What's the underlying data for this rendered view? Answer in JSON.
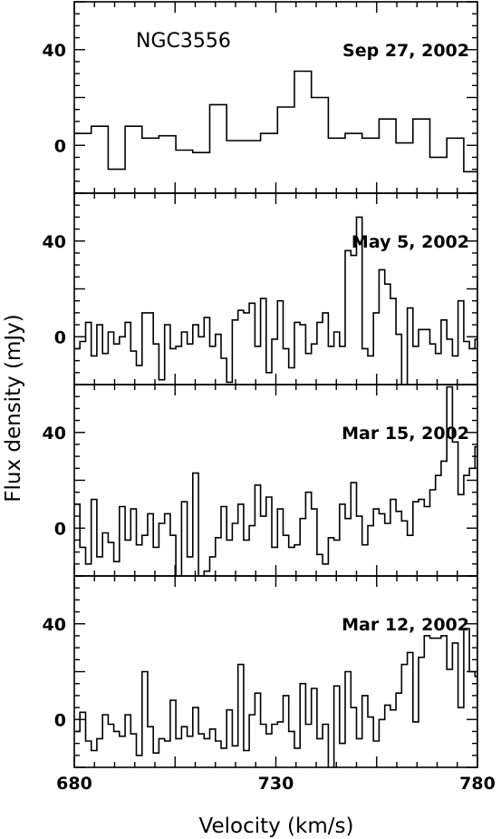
{
  "chart_data": {
    "type": "line",
    "style": "step-histogram",
    "object_name": "NGC3556",
    "xlabel": "Velocity (km/s)",
    "ylabel": "Flux density (mJy)",
    "xlim": [
      680,
      780
    ],
    "ylim": [
      -20,
      60
    ],
    "x_tick_labels": [
      "680",
      "730",
      "780"
    ],
    "x_ticks": [
      680,
      730,
      780
    ],
    "y_tick_labels": [
      "0",
      "40"
    ],
    "y_ticks": [
      0,
      40
    ],
    "grid": false,
    "panels": [
      {
        "label": "Sep 27, 2002",
        "x_start": 680,
        "x_step": 4.2,
        "values": [
          5,
          8,
          -10,
          8,
          3,
          4,
          -2,
          -3,
          17,
          2,
          2,
          5,
          16,
          31,
          20,
          3,
          5,
          3,
          11,
          1,
          11,
          -5,
          3,
          -11
        ]
      },
      {
        "label": "May 5, 2002",
        "x_start": 680,
        "x_step": 1.4,
        "values": [
          -5,
          -2,
          6,
          -8,
          5,
          -7,
          2,
          -3,
          0,
          6,
          -6,
          -12,
          10,
          10,
          -3,
          -18,
          5,
          -5,
          -4,
          2,
          -3,
          5,
          0,
          8,
          -4,
          1,
          -9,
          -19,
          7,
          11,
          10,
          14,
          -4,
          16,
          -15,
          -1,
          15,
          -5,
          -13,
          6,
          5,
          -7,
          -3,
          6,
          10,
          -4,
          2,
          -4,
          36,
          34,
          50,
          -5,
          -8,
          10,
          28,
          22,
          16,
          1,
          -27,
          12,
          -4,
          3,
          3,
          -3,
          -7,
          7,
          -1,
          -8,
          15,
          -2,
          -5,
          -1,
          -6,
          -1,
          -4,
          -2,
          5,
          -2,
          26,
          -18
        ]
      },
      {
        "label": "Mar 15, 2002",
        "x_start": 680,
        "x_step": 1.4,
        "values": [
          10,
          -8,
          -15,
          12,
          -12,
          -2,
          -6,
          -14,
          9,
          -5,
          8,
          -7,
          -3,
          6,
          -8,
          2,
          6,
          -3,
          -26,
          11,
          -12,
          23,
          -26,
          -18,
          -12,
          -4,
          9,
          -5,
          2,
          10,
          -5,
          1,
          18,
          5,
          13,
          -8,
          8,
          -3,
          -8,
          -7,
          4,
          15,
          8,
          -11,
          -15,
          -4,
          -5,
          10,
          4,
          19,
          5,
          -7,
          1,
          8,
          6,
          2,
          12,
          7,
          3,
          -3,
          11,
          12,
          9,
          16,
          22,
          28,
          59,
          36,
          14,
          22,
          25,
          34,
          19,
          15,
          11,
          14,
          11,
          1,
          -12,
          5,
          0,
          12,
          1,
          -3,
          8,
          -5,
          3,
          6,
          0,
          -9,
          4,
          -12,
          -6,
          9,
          -14,
          -6,
          5,
          -10,
          11,
          -14,
          -2,
          13,
          -22,
          -3,
          -7,
          -4,
          -6,
          3,
          4,
          -18,
          -12,
          -7,
          18,
          17,
          -11,
          -9,
          23,
          -6,
          -8,
          6,
          5
        ]
      },
      {
        "label": "Mar 12, 2002",
        "x_start": 680,
        "x_step": 1.4,
        "values": [
          -5,
          3,
          -9,
          -13,
          -8,
          2,
          -2,
          -5,
          -7,
          2,
          -6,
          -15,
          20,
          -3,
          -14,
          -8,
          -9,
          8,
          -8,
          -3,
          -7,
          5,
          -6,
          -8,
          -4,
          -9,
          -12,
          4,
          -11,
          23,
          -13,
          2,
          11,
          -2,
          -6,
          -2,
          -1,
          10,
          -5,
          -12,
          15,
          -2,
          13,
          -8,
          -2,
          -25,
          14,
          -10,
          20,
          5,
          -8,
          10,
          1,
          -9,
          0,
          6,
          4,
          11,
          23,
          28,
          -1,
          26,
          35,
          34,
          34,
          35,
          21,
          32,
          5,
          38,
          20,
          18,
          38,
          10,
          1,
          -2,
          3,
          -2,
          -8,
          -15,
          -8,
          0,
          13,
          -5,
          -11,
          -11,
          6,
          12,
          4,
          -4,
          3,
          -5,
          13,
          17,
          5,
          -2,
          -15,
          -2,
          14,
          -15,
          -7,
          -2,
          1,
          -13,
          -14,
          8,
          -8,
          -8,
          -7,
          6,
          -14,
          12,
          -9,
          -10,
          8,
          12,
          -5,
          -1,
          19,
          -9,
          -2,
          18,
          20
        ]
      }
    ]
  }
}
